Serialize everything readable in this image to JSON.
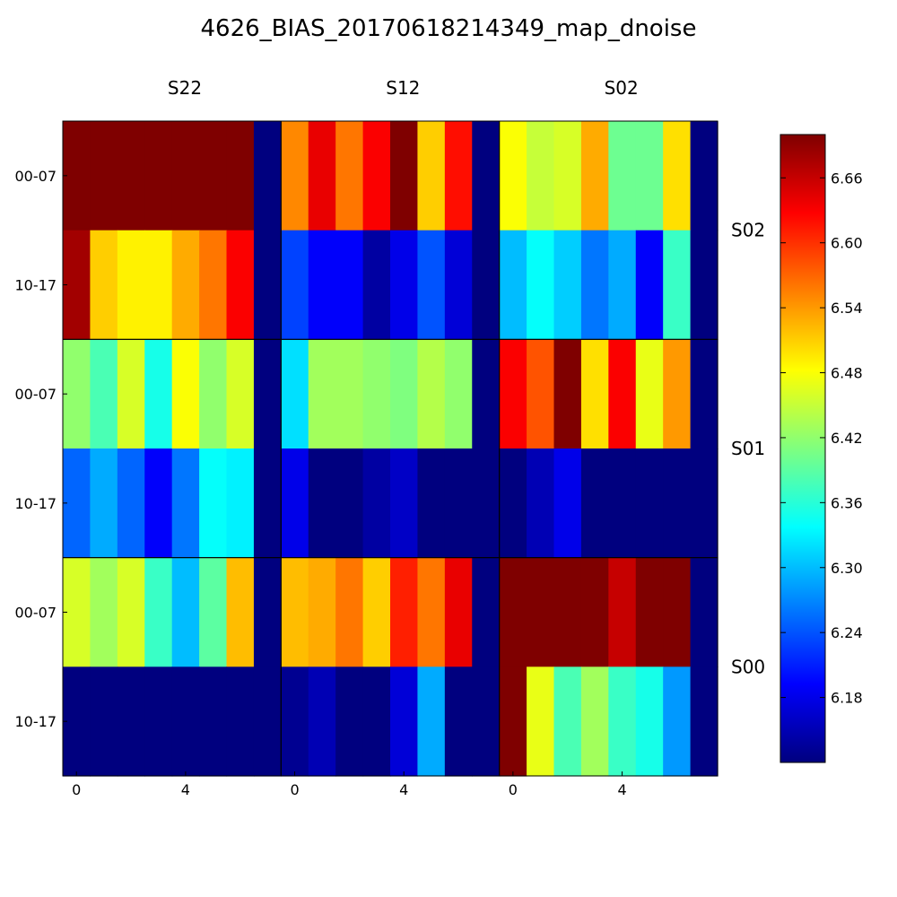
{
  "chart_data": {
    "type": "heatmap",
    "title": "4626_BIAS_20170618214349_map_dnoise",
    "column_headers": [
      "S22",
      "S12",
      "S02"
    ],
    "row_headers": [
      "S02",
      "S01",
      "S00"
    ],
    "y_tick_labels": [
      "00-07",
      "10-17"
    ],
    "x_tick_labels": [
      "0",
      "4"
    ],
    "colorbar": {
      "min": 6.12,
      "max": 6.7,
      "ticks": [
        "6.18",
        "6.24",
        "6.30",
        "6.36",
        "6.42",
        "6.48",
        "6.54",
        "6.60",
        "6.66"
      ]
    },
    "colormap": [
      "#00007f",
      "#0000ff",
      "#007fff",
      "#00ffff",
      "#7fff7f",
      "#ffff00",
      "#ff7f00",
      "#ff0000",
      "#7f0000"
    ],
    "grid": [
      [
        [
          [
            6.7,
            6.7,
            6.7,
            6.7,
            6.7,
            6.7,
            6.7,
            6.12
          ],
          [
            6.68,
            6.51,
            6.49,
            6.49,
            6.53,
            6.56,
            6.63,
            6.12
          ]
        ],
        [
          [
            6.55,
            6.64,
            6.56,
            6.63,
            6.7,
            6.51,
            6.62,
            6.12
          ],
          [
            6.23,
            6.19,
            6.19,
            6.14,
            6.18,
            6.24,
            6.17,
            6.12
          ]
        ],
        [
          [
            6.48,
            6.45,
            6.46,
            6.53,
            6.4,
            6.4,
            6.5,
            6.12
          ],
          [
            6.3,
            6.34,
            6.31,
            6.26,
            6.29,
            6.19,
            6.37,
            6.12
          ]
        ]
      ],
      [
        [
          [
            6.42,
            6.38,
            6.46,
            6.35,
            6.48,
            6.42,
            6.46,
            6.12
          ],
          [
            6.25,
            6.29,
            6.25,
            6.19,
            6.26,
            6.34,
            6.33,
            6.12
          ]
        ],
        [
          [
            6.32,
            6.43,
            6.43,
            6.42,
            6.41,
            6.44,
            6.42,
            6.12
          ],
          [
            6.18,
            6.12,
            6.12,
            6.14,
            6.16,
            6.12,
            6.12,
            6.12
          ]
        ],
        [
          [
            6.63,
            6.58,
            6.7,
            6.5,
            6.63,
            6.47,
            6.54,
            6.12
          ],
          [
            6.12,
            6.15,
            6.18,
            6.12,
            6.12,
            6.12,
            6.12,
            6.12
          ]
        ]
      ],
      [
        [
          [
            6.46,
            6.43,
            6.46,
            6.37,
            6.3,
            6.39,
            6.52,
            6.12
          ],
          [
            6.12,
            6.12,
            6.12,
            6.12,
            6.12,
            6.12,
            6.12,
            6.12
          ]
        ],
        [
          [
            6.52,
            6.53,
            6.56,
            6.51,
            6.61,
            6.56,
            6.64,
            6.12
          ],
          [
            6.13,
            6.15,
            6.12,
            6.12,
            6.17,
            6.29,
            6.12,
            6.12
          ]
        ],
        [
          [
            6.7,
            6.7,
            6.7,
            6.7,
            6.66,
            6.7,
            6.7,
            6.12
          ],
          [
            6.7,
            6.47,
            6.38,
            6.43,
            6.37,
            6.35,
            6.28,
            6.12
          ]
        ]
      ]
    ]
  }
}
